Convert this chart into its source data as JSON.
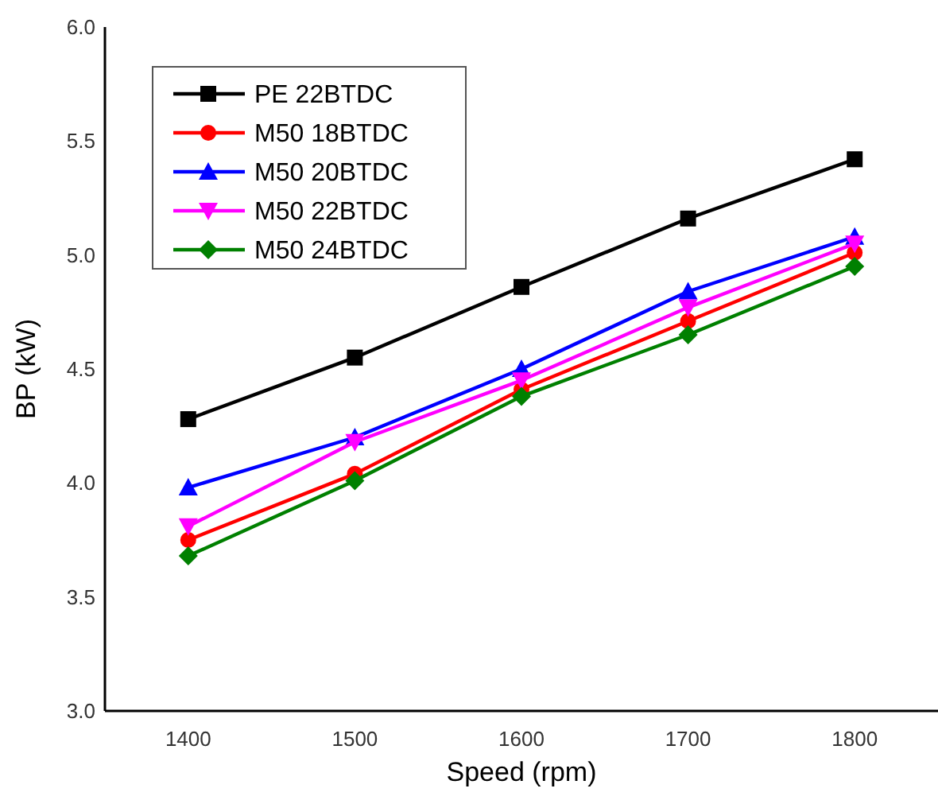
{
  "chart_data": {
    "type": "line",
    "xlabel": "Speed (rpm)",
    "ylabel": "BP (kW)",
    "x": [
      1400,
      1500,
      1600,
      1700,
      1800
    ],
    "xlim": [
      1350,
      1850
    ],
    "xticks": [
      1400,
      1500,
      1600,
      1700,
      1800
    ],
    "ylim": [
      3,
      6
    ],
    "yticks": [
      {
        "value": 3,
        "label": "3.0"
      },
      3.5,
      {
        "value": 4,
        "label": "4.0"
      },
      4.5,
      {
        "value": 5,
        "label": "5.0"
      },
      5.5,
      {
        "value": 6,
        "label": "6.0"
      }
    ],
    "grid": false,
    "legend": "top left",
    "line_style": "solid",
    "series": [
      {
        "name": "PE 22BTDC",
        "color": "#000000",
        "marker": "square",
        "values": [
          4.28,
          4.55,
          4.86,
          5.16,
          5.42
        ]
      },
      {
        "name": "M50 18BTDC",
        "color": "#ff0000",
        "marker": "circle",
        "values": [
          3.75,
          4.04,
          4.41,
          4.71,
          5.01
        ]
      },
      {
        "name": "M50 20BTDC",
        "color": "#0000ff",
        "marker": "triangle",
        "values": [
          3.98,
          4.2,
          4.5,
          4.84,
          5.08
        ]
      },
      {
        "name": "M50 22BTDC",
        "color": "#ff00ff",
        "marker": "triangle-down",
        "values": [
          3.81,
          4.18,
          4.45,
          4.77,
          5.05
        ]
      },
      {
        "name": "M50 24BTDC",
        "color": "#008000",
        "marker": "diamond",
        "values": [
          3.68,
          4.01,
          4.38,
          4.65,
          4.95
        ]
      }
    ]
  }
}
